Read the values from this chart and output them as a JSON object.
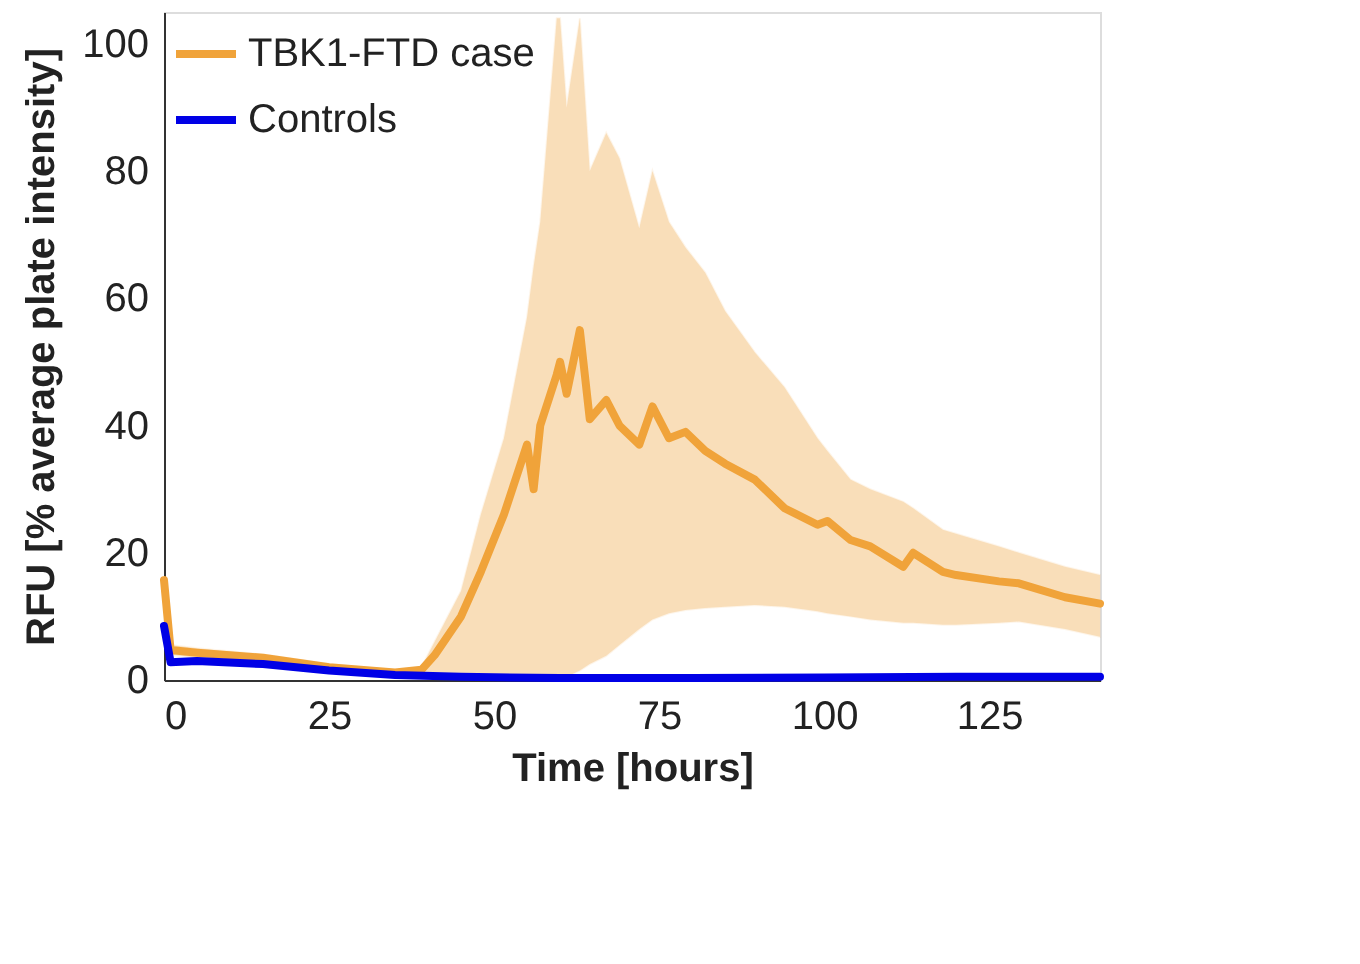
{
  "chart_data": {
    "type": "line",
    "xlabel": "Time [hours]",
    "ylabel": "RFU [% average plate intensity]",
    "xlim": [
      0,
      141.8
    ],
    "xticks": [
      0,
      25,
      50,
      75,
      100,
      125
    ],
    "ylim": [
      0,
      105
    ],
    "yticks": [
      0,
      20,
      40,
      60,
      80,
      100
    ],
    "grid": false,
    "legend": "top left",
    "marker": "none",
    "line_style": "solid",
    "series": [
      {
        "name": "TBK1-FTD case",
        "color": "#f0a33a",
        "x": [
          0,
          1,
          5,
          15,
          25,
          35,
          39,
          41,
          45,
          48,
          51.5,
          55,
          56,
          57,
          59.5,
          60,
          61,
          63,
          64.5,
          67,
          69,
          72,
          74,
          76.5,
          79,
          82,
          85,
          89.5,
          94,
          99,
          100.5,
          104,
          107,
          112,
          113.5,
          118,
          120,
          126.5,
          129.5,
          136.5,
          141.8
        ],
        "values": [
          15.7,
          4.7,
          4.3,
          3.5,
          2,
          1.2,
          1.6,
          3.9,
          10,
          17,
          26,
          37,
          30,
          40,
          48,
          50,
          45,
          55,
          41,
          44,
          40,
          37,
          43,
          38,
          39,
          36,
          34,
          31.5,
          27,
          24.4,
          25,
          22,
          21,
          17.8,
          20,
          17,
          16.5,
          15.5,
          15.2,
          13,
          12
        ],
        "upper": [
          16,
          5.5,
          5,
          4,
          2.5,
          1.5,
          2,
          6,
          14,
          26,
          38,
          57,
          65,
          72,
          104,
          104,
          90,
          104,
          80,
          86,
          82,
          71,
          80,
          72,
          68,
          64,
          58,
          51.5,
          46,
          38,
          36,
          31.5,
          30,
          28,
          27,
          23.6,
          23,
          21,
          20,
          17.8,
          16.5
        ],
        "lower": [
          15,
          4,
          3.5,
          3,
          1.5,
          1,
          1,
          0.5,
          0.5,
          0.5,
          0.5,
          0.5,
          0.5,
          0.5,
          0.5,
          0.5,
          0.5,
          1.5,
          2.5,
          3.8,
          5.5,
          8,
          9.5,
          10.5,
          11,
          11.3,
          11.5,
          11.8,
          11.5,
          10.8,
          10.5,
          10,
          9.5,
          9,
          9,
          8.7,
          8.7,
          9,
          9.2,
          8,
          6.8
        ]
      },
      {
        "name": "Controls",
        "color": "#0000e6",
        "x": [
          0,
          1,
          5,
          15,
          25,
          35,
          45,
          60,
          80,
          100,
          120,
          141.8
        ],
        "values": [
          8.5,
          2.8,
          3,
          2.5,
          1.5,
          0.8,
          0.5,
          0.3,
          0.3,
          0.4,
          0.5,
          0.5
        ]
      }
    ]
  }
}
